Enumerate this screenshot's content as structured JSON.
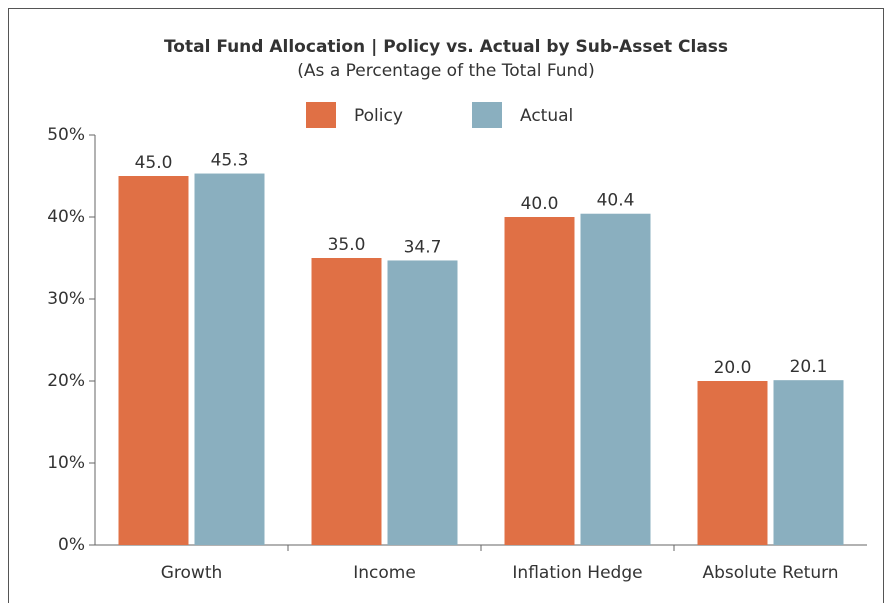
{
  "chart_data": {
    "type": "bar",
    "title": "Total Fund Allocation | Policy vs. Actual by Sub-Asset Class",
    "subtitle": "(As a Percentage of the Total Fund)",
    "categories": [
      "Growth",
      "Income",
      "Inflation Hedge",
      "Absolute Return"
    ],
    "series": [
      {
        "name": "Policy",
        "color": "#e07045",
        "values": [
          45.0,
          35.0,
          40.0,
          20.0
        ],
        "value_labels": [
          "45.0",
          "35.0",
          "40.0",
          "20.0"
        ]
      },
      {
        "name": "Actual",
        "color": "#8aafbf",
        "values": [
          45.3,
          34.7,
          40.4,
          20.1
        ],
        "value_labels": [
          "45.3",
          "34.7",
          "40.4",
          "20.1"
        ]
      }
    ],
    "ylim": [
      0,
      50
    ],
    "yticks": [
      {
        "value": 0,
        "label": "0%"
      },
      {
        "value": 10,
        "label": "10%"
      },
      {
        "value": 20,
        "label": "20%"
      },
      {
        "value": 30,
        "label": "30%"
      },
      {
        "value": 40,
        "label": "40%"
      },
      {
        "value": 50,
        "label": "50%"
      }
    ],
    "legend": "top"
  }
}
